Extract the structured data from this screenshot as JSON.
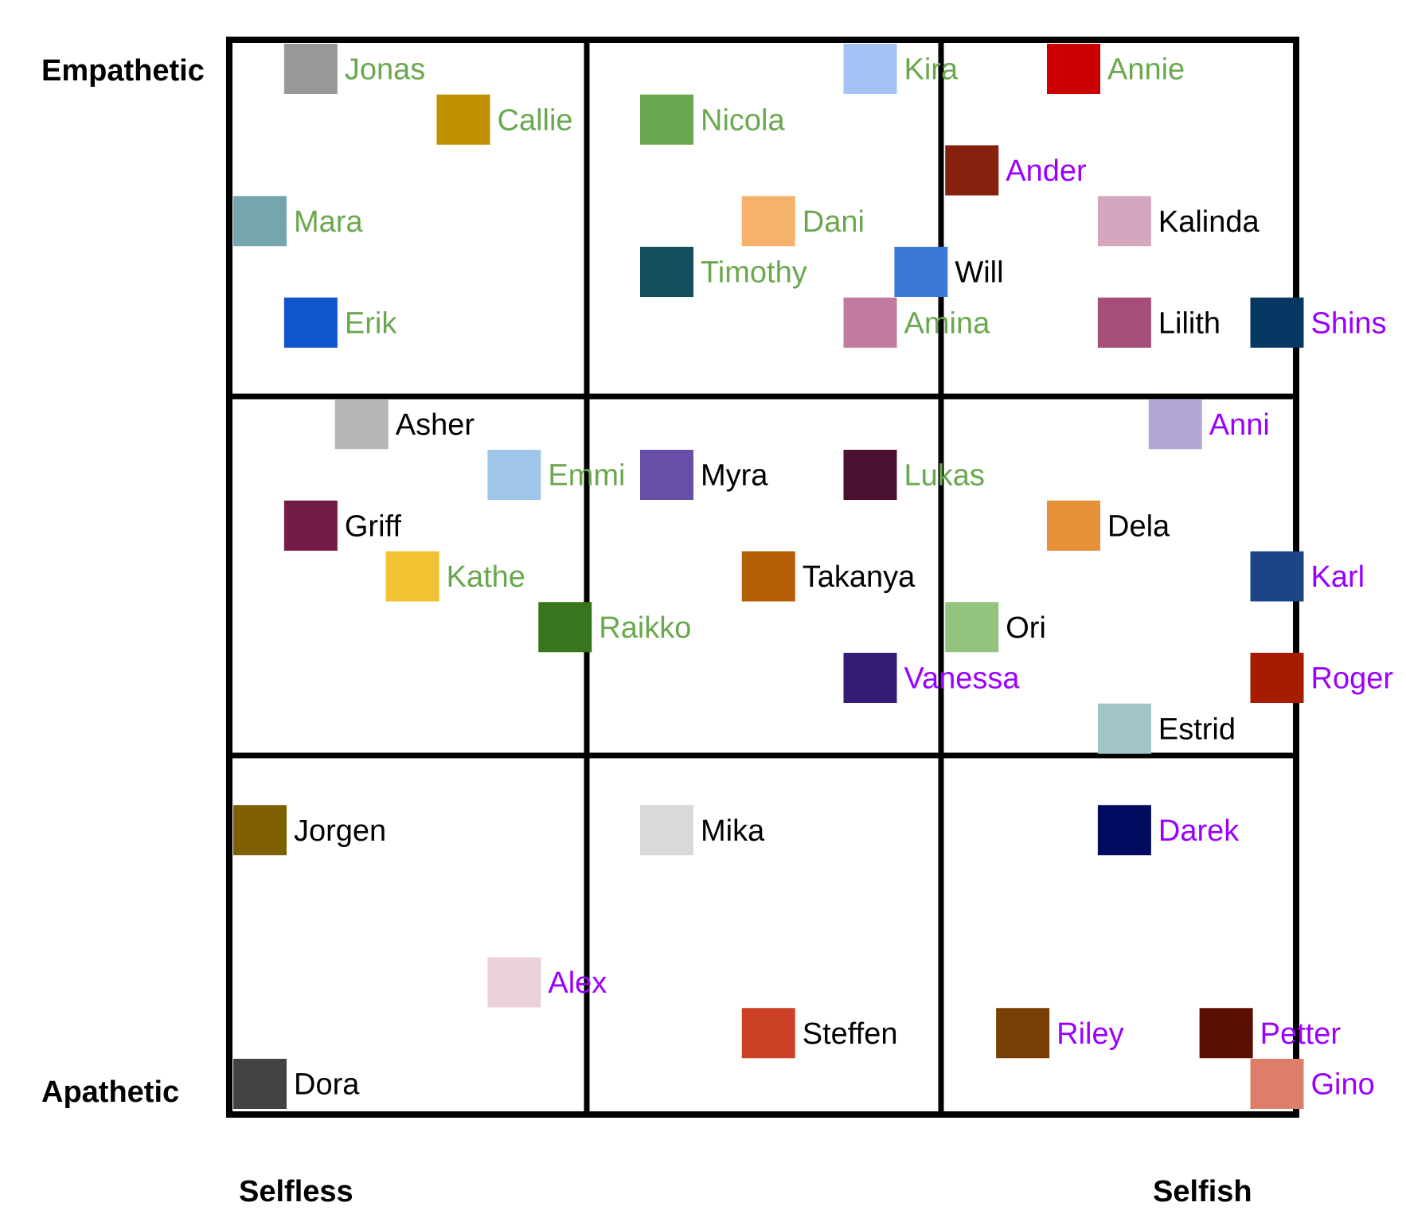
{
  "axes": {
    "y_top": "Empathetic",
    "y_bottom": "Apathetic",
    "x_left": "Selfless",
    "x_right": "Selfish"
  },
  "label_colors": {
    "green": "#6aa84f",
    "purple": "#9a00ff",
    "black": "#000000"
  },
  "people": [
    {
      "name": "Jonas",
      "col": 0.25,
      "row": 0.0,
      "color": "#999999",
      "label": "green"
    },
    {
      "name": "Callie",
      "col": 1.0,
      "row": 0.25,
      "color": "#bf9000",
      "label": "green"
    },
    {
      "name": "Mara",
      "col": 0.0,
      "row": 0.75,
      "color": "#76a5af",
      "label": "green"
    },
    {
      "name": "Erik",
      "col": 0.25,
      "row": 1.25,
      "color": "#1155cc",
      "label": "green"
    },
    {
      "name": "Nicola",
      "col": 2.0,
      "row": 0.25,
      "color": "#6aa84f",
      "label": "green"
    },
    {
      "name": "Kira",
      "col": 3.0,
      "row": 0.0,
      "color": "#a4c2f4",
      "label": "green"
    },
    {
      "name": "Annie",
      "col": 4.0,
      "row": 0.0,
      "color": "#cc0000",
      "label": "green"
    },
    {
      "name": "Ander",
      "col": 3.5,
      "row": 0.5,
      "color": "#85200c",
      "label": "purple"
    },
    {
      "name": "Dani",
      "col": 2.5,
      "row": 0.75,
      "color": "#f6b26b",
      "label": "green"
    },
    {
      "name": "Kalinda",
      "col": 4.25,
      "row": 0.75,
      "color": "#d5a6bd",
      "label": "black"
    },
    {
      "name": "Timothy",
      "col": 2.0,
      "row": 1.0,
      "color": "#134f5c",
      "label": "green"
    },
    {
      "name": "Will",
      "col": 3.25,
      "row": 1.0,
      "color": "#3c78d8",
      "label": "black"
    },
    {
      "name": "Amina",
      "col": 3.0,
      "row": 1.25,
      "color": "#c27ba0",
      "label": "green"
    },
    {
      "name": "Lilith",
      "col": 4.25,
      "row": 1.25,
      "color": "#a64d79",
      "label": "black"
    },
    {
      "name": "Shins",
      "col": 5.0,
      "row": 1.25,
      "color": "#073763",
      "label": "purple"
    },
    {
      "name": "Asher",
      "col": 0.5,
      "row": 1.75,
      "color": "#b7b7b7",
      "label": "black"
    },
    {
      "name": "Anni",
      "col": 4.5,
      "row": 1.75,
      "color": "#b4a7d6",
      "label": "purple"
    },
    {
      "name": "Emmi",
      "col": 1.25,
      "row": 2.0,
      "color": "#9fc5e8",
      "label": "green"
    },
    {
      "name": "Myra",
      "col": 2.0,
      "row": 2.0,
      "color": "#674ea7",
      "label": "black"
    },
    {
      "name": "Lukas",
      "col": 3.0,
      "row": 2.0,
      "color": "#4c1130",
      "label": "green"
    },
    {
      "name": "Griff",
      "col": 0.25,
      "row": 2.25,
      "color": "#741b47",
      "label": "black"
    },
    {
      "name": "Dela",
      "col": 4.0,
      "row": 2.25,
      "color": "#e69138",
      "label": "black"
    },
    {
      "name": "Kathe",
      "col": 0.75,
      "row": 2.5,
      "color": "#f1c232",
      "label": "green"
    },
    {
      "name": "Takanya",
      "col": 2.5,
      "row": 2.5,
      "color": "#b45f06",
      "label": "black"
    },
    {
      "name": "Karl",
      "col": 5.0,
      "row": 2.5,
      "color": "#1c4587",
      "label": "purple"
    },
    {
      "name": "Raikko",
      "col": 1.5,
      "row": 2.75,
      "color": "#38761d",
      "label": "green"
    },
    {
      "name": "Ori",
      "col": 3.5,
      "row": 2.75,
      "color": "#93c47d",
      "label": "black"
    },
    {
      "name": "Vanessa",
      "col": 3.0,
      "row": 3.0,
      "color": "#351c75",
      "label": "purple"
    },
    {
      "name": "Roger",
      "col": 5.0,
      "row": 3.0,
      "color": "#a61c00",
      "label": "purple"
    },
    {
      "name": "Estrid",
      "col": 4.25,
      "row": 3.25,
      "color": "#a2c4c9",
      "label": "black"
    },
    {
      "name": "Jorgen",
      "col": 0.0,
      "row": 3.75,
      "color": "#7f6000",
      "label": "black"
    },
    {
      "name": "Mika",
      "col": 2.0,
      "row": 3.75,
      "color": "#d9d9d9",
      "label": "black"
    },
    {
      "name": "Darek",
      "col": 4.25,
      "row": 3.75,
      "color": "#000a5e",
      "label": "purple"
    },
    {
      "name": "Alex",
      "col": 1.25,
      "row": 4.5,
      "color": "#ead1dc",
      "label": "purple"
    },
    {
      "name": "Steffen",
      "col": 2.5,
      "row": 4.75,
      "color": "#cc4125",
      "label": "black"
    },
    {
      "name": "Riley",
      "col": 3.75,
      "row": 4.75,
      "color": "#783f04",
      "label": "purple"
    },
    {
      "name": "Petter",
      "col": 4.75,
      "row": 4.75,
      "color": "#5b0f00",
      "label": "purple"
    },
    {
      "name": "Dora",
      "col": 0.0,
      "row": 5.0,
      "color": "#434343",
      "label": "black"
    },
    {
      "name": "Gino",
      "col": 5.0,
      "row": 5.0,
      "color": "#dd7e6b",
      "label": "purple"
    }
  ]
}
